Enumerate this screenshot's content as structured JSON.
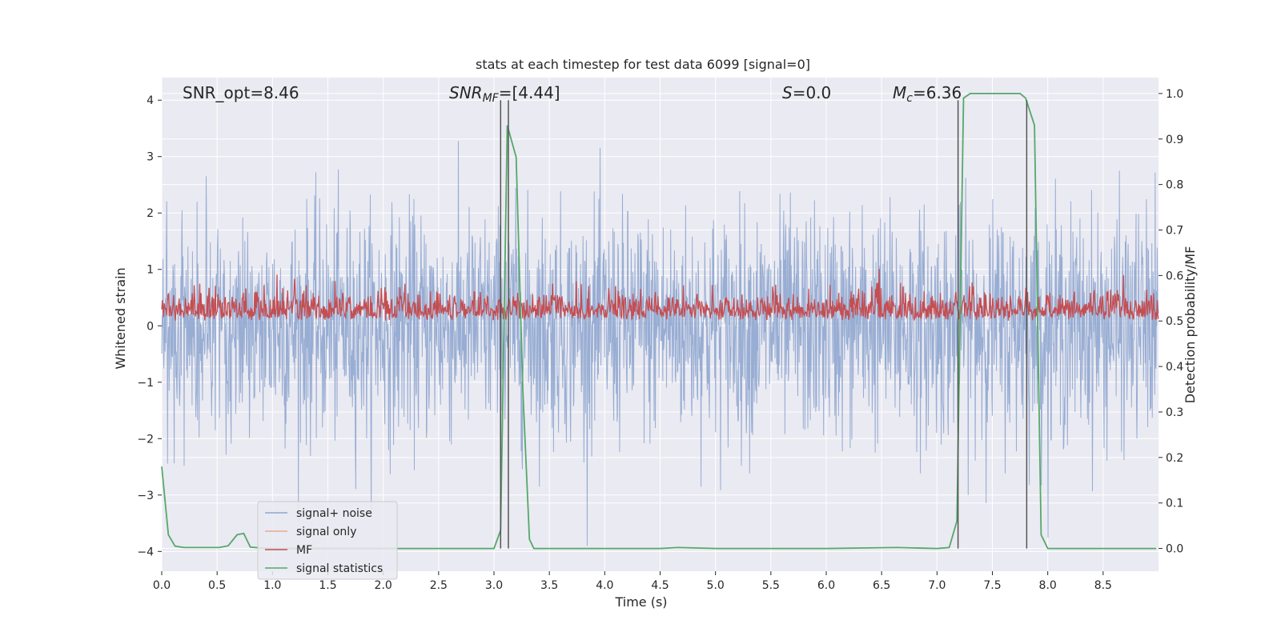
{
  "chart_data": {
    "type": "line",
    "title": "stats at each timestep for test data 6099 [signal=0]",
    "xlabel": "Time (s)",
    "ylabel": "Whitened strain",
    "ylabel_right": "Detection probability/MF",
    "xlim": [
      0,
      9.0
    ],
    "ylim": [
      -4.35,
      4.4
    ],
    "ylim_right": [
      -0.05,
      1.035
    ],
    "x_ticks": [
      0.0,
      0.5,
      1.0,
      1.5,
      2.0,
      2.5,
      3.0,
      3.5,
      4.0,
      4.5,
      5.0,
      5.5,
      6.0,
      6.5,
      7.0,
      7.5,
      8.0,
      8.5
    ],
    "x_tick_labels": [
      "0.0",
      "0.5",
      "1.0",
      "1.5",
      "2.0",
      "2.5",
      "3.0",
      "3.5",
      "4.0",
      "4.5",
      "5.0",
      "5.5",
      "6.0",
      "6.5",
      "7.0",
      "7.5",
      "8.0",
      "8.5"
    ],
    "y_ticks": [
      -4,
      -3,
      -2,
      -1,
      0,
      1,
      2,
      3,
      4
    ],
    "y_tick_labels": [
      "−4",
      "−3",
      "−2",
      "−1",
      "0",
      "1",
      "2",
      "3",
      "4"
    ],
    "y_ticks_right": [
      0.0,
      0.1,
      0.2,
      0.3,
      0.4,
      0.5,
      0.6,
      0.7,
      0.8,
      0.9,
      1.0
    ],
    "y_tick_labels_right": [
      "0.0",
      "0.1",
      "0.2",
      "0.3",
      "0.4",
      "0.5",
      "0.6",
      "0.7",
      "0.8",
      "0.9",
      "1.0"
    ],
    "annotations": {
      "snr_opt": "SNR_opt=8.46",
      "snr_mf_italic": "SNR",
      "snr_mf_sub": "MF",
      "snr_mf_value": "=[4.44]",
      "s_italic": "S",
      "s_value": "=0.0",
      "mc_italic": "M",
      "mc_sub": "c",
      "mc_value": "=6.36"
    },
    "legend_placement": "lower-left",
    "series": [
      {
        "name": "signal+ noise",
        "color": "#8fa6cf",
        "kind": "noise",
        "x_range": [
          0,
          9.0
        ],
        "y_range": [
          -3.9,
          3.95
        ]
      },
      {
        "name": "signal only",
        "color": "#e8a98c",
        "kind": "flat",
        "values": []
      },
      {
        "name": "MF",
        "color": "#c44e52",
        "kind": "noise-right",
        "x_range": [
          0,
          9.0
        ],
        "y_range": [
          0.5,
          0.6
        ]
      },
      {
        "name": "signal statistics",
        "color": "#55a868",
        "kind": "line-right",
        "x": [
          0.0,
          0.06,
          0.12,
          0.2,
          0.3,
          0.4,
          0.52,
          0.6,
          0.68,
          0.74,
          0.8,
          0.9,
          1.0,
          2.0,
          3.0,
          3.06,
          3.12,
          3.2,
          3.26,
          3.32,
          3.36,
          3.45,
          4.0,
          4.5,
          4.66,
          5.0,
          6.0,
          6.64,
          7.0,
          7.11,
          7.18,
          7.24,
          7.3,
          7.35,
          7.75,
          7.8,
          7.88,
          7.94,
          8.0,
          8.5,
          8.98
        ],
        "y": [
          0.18,
          0.03,
          0.005,
          0.002,
          0.002,
          0.002,
          0.002,
          0.006,
          0.03,
          0.033,
          0.003,
          0.001,
          0.0,
          0.0,
          0.0,
          0.04,
          0.93,
          0.86,
          0.35,
          0.02,
          0.0,
          0.0,
          0.0,
          0.0,
          0.002,
          0.0,
          0.0,
          0.002,
          0.0,
          0.002,
          0.06,
          0.99,
          1.0,
          1.0,
          1.0,
          0.99,
          0.93,
          0.03,
          0.0,
          0.0,
          0.0
        ]
      }
    ],
    "vertical_lines_x": [
      3.06,
      3.13,
      7.19,
      7.81
    ]
  }
}
